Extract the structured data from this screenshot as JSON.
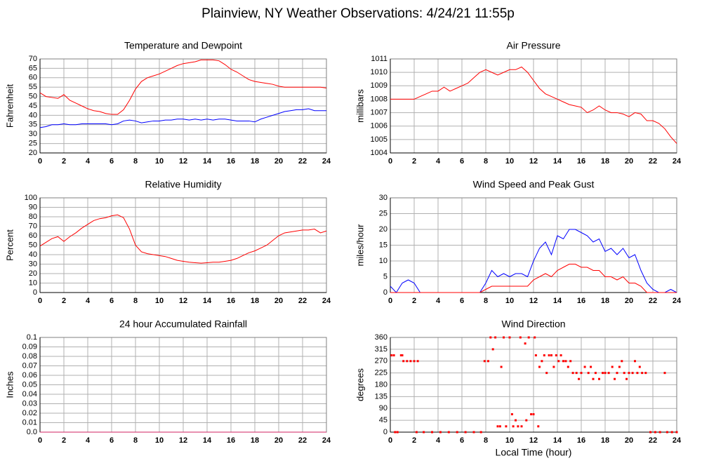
{
  "title": "Plainview, NY Weather Observations: 4/24/21 11:55p",
  "chart_data": [
    {
      "type": "line",
      "title": "Temperature and Dewpoint",
      "ylabel": "Fahrenheit",
      "grid": true,
      "xlim": [
        0,
        24
      ],
      "xticks": [
        0,
        2,
        4,
        6,
        8,
        10,
        12,
        14,
        16,
        18,
        20,
        22,
        24
      ],
      "ylim": [
        20,
        70
      ],
      "yticks": [
        20,
        25,
        30,
        35,
        40,
        45,
        50,
        55,
        60,
        65,
        70
      ],
      "x": [
        0,
        0.5,
        1,
        1.5,
        2,
        2.5,
        3,
        3.5,
        4,
        4.5,
        5,
        5.5,
        6,
        6.5,
        7,
        7.5,
        8,
        8.5,
        9,
        9.5,
        10,
        10.5,
        11,
        11.5,
        12,
        12.5,
        13,
        13.5,
        14,
        14.5,
        15,
        15.5,
        16,
        16.5,
        17,
        17.5,
        18,
        18.5,
        19,
        19.5,
        20,
        20.5,
        21,
        21.5,
        22,
        22.5,
        23,
        23.5,
        24
      ],
      "series": [
        {
          "color": "#ff0000",
          "values": [
            52,
            50,
            49.5,
            49,
            51,
            48,
            46.5,
            45,
            43.5,
            42.5,
            42,
            41,
            40.5,
            40.5,
            43,
            48,
            54,
            58,
            60,
            61,
            62,
            63.5,
            65,
            66.5,
            67.5,
            68,
            68.5,
            69.5,
            69.5,
            69.5,
            69,
            67,
            64.5,
            63,
            61,
            59,
            58,
            57.5,
            57,
            56.5,
            55.5,
            55,
            55,
            55,
            55,
            55,
            55,
            55,
            54.5
          ]
        },
        {
          "color": "#0000ff",
          "values": [
            33.5,
            34,
            35,
            35,
            35.5,
            35,
            35,
            35.5,
            35.5,
            35.5,
            35.5,
            35.5,
            35,
            35.5,
            37,
            37.5,
            37,
            36,
            36.5,
            37,
            37,
            37.5,
            37.5,
            38,
            38,
            37.5,
            38,
            37.5,
            38,
            37.5,
            38,
            38,
            37.5,
            37,
            37,
            37,
            36.5,
            38,
            39,
            40,
            41,
            42,
            42.5,
            43,
            43,
            43.5,
            42.5,
            42.5,
            42.5
          ]
        }
      ]
    },
    {
      "type": "line",
      "title": "Air Pressure",
      "ylabel": "millibars",
      "grid": true,
      "xlim": [
        0,
        24
      ],
      "xticks": [
        0,
        2,
        4,
        6,
        8,
        10,
        12,
        14,
        16,
        18,
        20,
        22,
        24
      ],
      "ylim": [
        1004,
        1011
      ],
      "yticks": [
        1004,
        1005,
        1006,
        1007,
        1008,
        1009,
        1010,
        1011
      ],
      "x": [
        0,
        0.5,
        1,
        1.5,
        2,
        2.5,
        3,
        3.5,
        4,
        4.5,
        5,
        5.5,
        6,
        6.5,
        7,
        7.5,
        8,
        8.5,
        9,
        9.5,
        10,
        10.5,
        11,
        11.5,
        12,
        12.5,
        13,
        13.5,
        14,
        14.5,
        15,
        15.5,
        16,
        16.5,
        17,
        17.5,
        18,
        18.5,
        19,
        19.5,
        20,
        20.5,
        21,
        21.5,
        22,
        22.5,
        23,
        23.5,
        24
      ],
      "series": [
        {
          "color": "#ff0000",
          "values": [
            1008,
            1008,
            1008,
            1008,
            1008,
            1008.2,
            1008.4,
            1008.6,
            1008.6,
            1008.9,
            1008.6,
            1008.8,
            1009,
            1009.2,
            1009.6,
            1010,
            1010.2,
            1010,
            1009.8,
            1010,
            1010.2,
            1010.2,
            1010.4,
            1010,
            1009.4,
            1008.8,
            1008.4,
            1008.2,
            1008,
            1007.8,
            1007.6,
            1007.5,
            1007.4,
            1007,
            1007.2,
            1007.5,
            1007.2,
            1007,
            1007,
            1006.9,
            1006.7,
            1007,
            1006.9,
            1006.4,
            1006.4,
            1006.2,
            1005.8,
            1005.2,
            1004.7
          ]
        }
      ]
    },
    {
      "type": "line",
      "title": "Relative Humidity",
      "ylabel": "Percent",
      "grid": true,
      "xlim": [
        0,
        24
      ],
      "xticks": [
        0,
        2,
        4,
        6,
        8,
        10,
        12,
        14,
        16,
        18,
        20,
        22,
        24
      ],
      "ylim": [
        0,
        100
      ],
      "yticks": [
        0,
        10,
        20,
        30,
        40,
        50,
        60,
        70,
        80,
        90,
        100
      ],
      "x": [
        0,
        0.5,
        1,
        1.5,
        2,
        2.5,
        3,
        3.5,
        4,
        4.5,
        5,
        5.5,
        6,
        6.5,
        7,
        7.5,
        8,
        8.5,
        9,
        9.5,
        10,
        10.5,
        11,
        11.5,
        12,
        12.5,
        13,
        13.5,
        14,
        14.5,
        15,
        15.5,
        16,
        16.5,
        17,
        17.5,
        18,
        18.5,
        19,
        19.5,
        20,
        20.5,
        21,
        21.5,
        22,
        22.5,
        23,
        23.5,
        24
      ],
      "series": [
        {
          "color": "#ff0000",
          "values": [
            49,
            53,
            57,
            59,
            54,
            59,
            63,
            68,
            72,
            76,
            78,
            79,
            81,
            82,
            79,
            67,
            50,
            43,
            41,
            40,
            39,
            38,
            36,
            34,
            33,
            32,
            31.5,
            31,
            31.5,
            32,
            32,
            33,
            34,
            36,
            39,
            42,
            44,
            47,
            50,
            55,
            60,
            63,
            64,
            65,
            66,
            66,
            67,
            63,
            65
          ]
        }
      ]
    },
    {
      "type": "line",
      "title": "Wind Speed and Peak Gust",
      "ylabel": "miles/hour",
      "grid": true,
      "xlim": [
        0,
        24
      ],
      "xticks": [
        0,
        2,
        4,
        6,
        8,
        10,
        12,
        14,
        16,
        18,
        20,
        22,
        24
      ],
      "ylim": [
        0,
        30
      ],
      "yticks": [
        0,
        5,
        10,
        15,
        20,
        25,
        30
      ],
      "x": [
        0,
        0.5,
        1,
        1.5,
        2,
        2.5,
        3,
        3.5,
        4,
        4.5,
        5,
        5.5,
        6,
        6.5,
        7,
        7.5,
        8,
        8.5,
        9,
        9.5,
        10,
        10.5,
        11,
        11.5,
        12,
        12.5,
        13,
        13.5,
        14,
        14.5,
        15,
        15.5,
        16,
        16.5,
        17,
        17.5,
        18,
        18.5,
        19,
        19.5,
        20,
        20.5,
        21,
        21.5,
        22,
        22.5,
        23,
        23.5,
        24
      ],
      "series": [
        {
          "color": "#0000ff",
          "values": [
            2,
            0,
            3,
            4,
            3,
            0,
            0,
            0,
            0,
            0,
            0,
            0,
            0,
            0,
            0,
            0,
            3,
            7,
            5,
            6,
            5,
            6,
            6,
            5,
            10,
            14,
            16,
            12,
            18,
            17,
            20,
            20,
            19,
            18,
            16,
            17,
            13,
            14,
            12,
            14,
            11,
            12,
            7,
            3,
            1,
            0,
            0,
            1,
            0
          ]
        },
        {
          "color": "#ff0000",
          "values": [
            0,
            0,
            0,
            0,
            0,
            0,
            0,
            0,
            0,
            0,
            0,
            0,
            0,
            0,
            0,
            0,
            1,
            2,
            2,
            2,
            2,
            2,
            2,
            2,
            4,
            5,
            6,
            5,
            7,
            8,
            9,
            9,
            8,
            8,
            7,
            7,
            5,
            5,
            4,
            5,
            3,
            3,
            2,
            0,
            0,
            0,
            0,
            0,
            0
          ]
        }
      ]
    },
    {
      "type": "line",
      "title": "24 hour Accumulated Rainfall",
      "ylabel": "Inches",
      "grid": true,
      "xlim": [
        0,
        24
      ],
      "xticks": [
        0,
        2,
        4,
        6,
        8,
        10,
        12,
        14,
        16,
        18,
        20,
        22,
        24
      ],
      "ylim": [
        0,
        0.1
      ],
      "yticks": [
        {
          "value": 0,
          "label": "0.0"
        },
        0.01,
        0.02,
        0.03,
        0.04,
        0.05,
        0.06,
        0.07,
        0.08,
        0.09,
        0.1
      ],
      "x": [
        0,
        24
      ],
      "series": [
        {
          "color": "#d02060",
          "values": [
            0,
            0
          ]
        }
      ]
    },
    {
      "type": "scatter",
      "title": "Wind Direction",
      "ylabel": "degrees",
      "xlabel": "Local Time (hour)",
      "grid": true,
      "xlim": [
        0,
        24
      ],
      "xticks": [
        0,
        2,
        4,
        6,
        8,
        10,
        12,
        14,
        16,
        18,
        20,
        22,
        24
      ],
      "ylim": [
        0,
        360
      ],
      "yticks": [
        0,
        45,
        90,
        135,
        180,
        225,
        270,
        315,
        360
      ],
      "color": "#ff0000",
      "x": [
        0.1,
        0.3,
        0.4,
        0.6,
        0.9,
        1.0,
        1.1,
        1.4,
        1.7,
        2.0,
        2.3,
        2.2,
        2.8,
        3.5,
        4.2,
        4.9,
        5.6,
        6.3,
        7.0,
        7.6,
        7.9,
        8.2,
        8.4,
        8.6,
        8.8,
        9.0,
        9.2,
        9.3,
        9.5,
        9.7,
        10.0,
        10.2,
        10.3,
        10.5,
        10.7,
        10.9,
        11.0,
        11.3,
        11.4,
        11.6,
        11.8,
        12.0,
        12.1,
        12.2,
        12.4,
        12.5,
        12.7,
        12.9,
        13.1,
        13.3,
        13.5,
        13.7,
        13.9,
        14.1,
        14.3,
        14.5,
        14.7,
        14.9,
        15.1,
        15.3,
        15.6,
        15.8,
        16.0,
        16.3,
        16.6,
        16.8,
        17.0,
        17.2,
        17.5,
        17.8,
        18.0,
        18.3,
        18.6,
        18.8,
        19.0,
        19.2,
        19.4,
        19.6,
        19.8,
        20.0,
        20.3,
        20.5,
        20.7,
        20.9,
        21.1,
        21.4,
        21.8,
        22.2,
        22.6,
        23.0,
        23.2,
        23.6,
        24.0
      ],
      "values": [
        292,
        292,
        0,
        0,
        292,
        292,
        270,
        270,
        270,
        270,
        270,
        0,
        0,
        0,
        0,
        0,
        0,
        0,
        0,
        0,
        270,
        270,
        360,
        315,
        360,
        22,
        22,
        248,
        360,
        22,
        360,
        68,
        22,
        45,
        22,
        360,
        22,
        337,
        45,
        360,
        68,
        68,
        360,
        292,
        22,
        248,
        270,
        292,
        225,
        292,
        292,
        248,
        292,
        270,
        292,
        270,
        270,
        248,
        270,
        225,
        225,
        202,
        225,
        248,
        225,
        248,
        202,
        225,
        202,
        225,
        225,
        225,
        248,
        202,
        225,
        248,
        270,
        225,
        202,
        225,
        225,
        270,
        225,
        248,
        225,
        225,
        0,
        0,
        0,
        225,
        0,
        0,
        0
      ]
    }
  ]
}
